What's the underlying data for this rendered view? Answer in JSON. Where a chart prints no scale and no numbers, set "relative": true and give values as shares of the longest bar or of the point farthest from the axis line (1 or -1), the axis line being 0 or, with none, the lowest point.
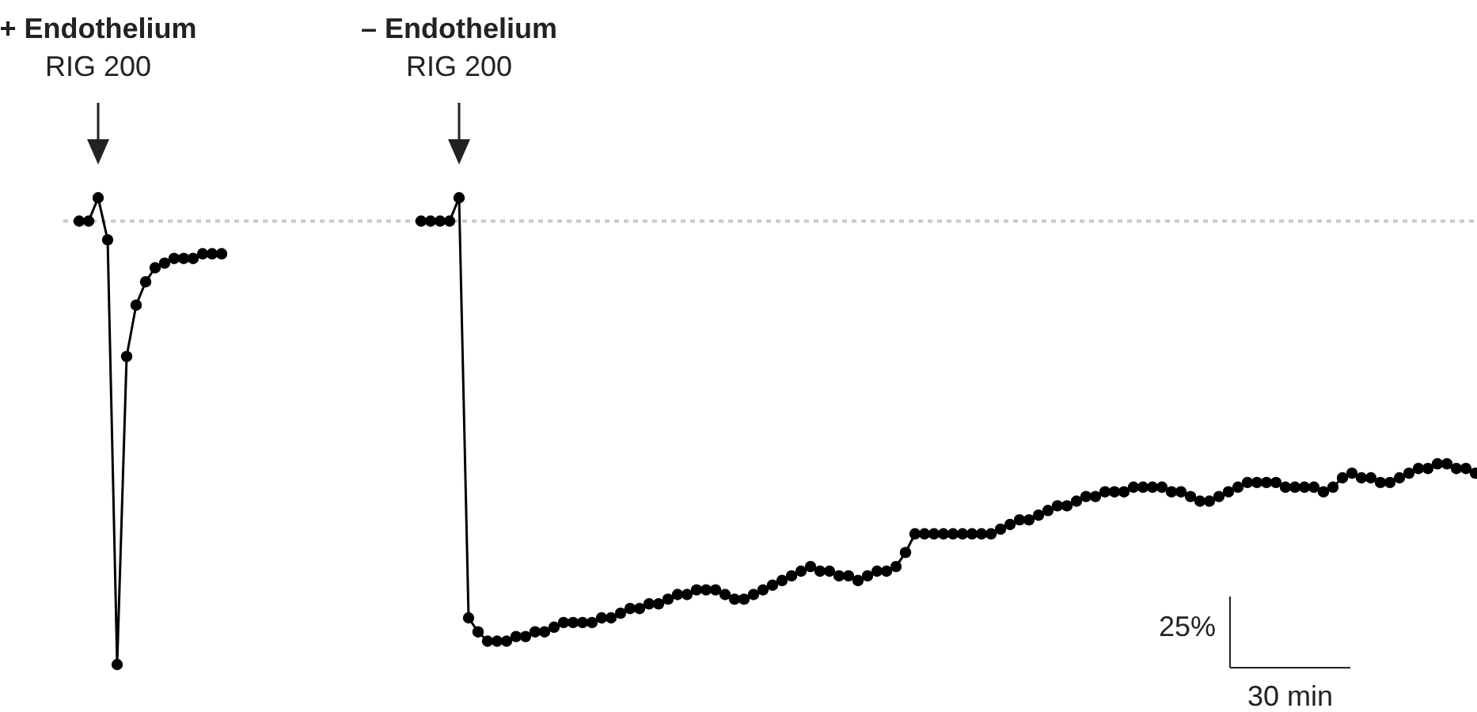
{
  "chart_data": {
    "type": "line",
    "relative": true,
    "marker": "circle",
    "categories": [
      null,
      null,
      null,
      null,
      null,
      null,
      null,
      null,
      null,
      null,
      null,
      null,
      null,
      null,
      null,
      null,
      null,
      null,
      null,
      null,
      null,
      null,
      null,
      null,
      null,
      null,
      null,
      null,
      null,
      null,
      null,
      null,
      null,
      null,
      null,
      null,
      null,
      null,
      null,
      null,
      null,
      null,
      null,
      null,
      null,
      null,
      null,
      null,
      null,
      null,
      null,
      null,
      null,
      null,
      null,
      null,
      null,
      null,
      null,
      null,
      null,
      null,
      null,
      null,
      null,
      null,
      null,
      null,
      null,
      null,
      null,
      null,
      null,
      null,
      null,
      null,
      null,
      null,
      null,
      null,
      null,
      null,
      null,
      null,
      null,
      null,
      null,
      null,
      null,
      null,
      null,
      null,
      null,
      null,
      null,
      null,
      null,
      null,
      null,
      null,
      null,
      null,
      null,
      null,
      null,
      null,
      null,
      null,
      null,
      null,
      null,
      null,
      null,
      null,
      null,
      null,
      null,
      null,
      null,
      null,
      null,
      null,
      null,
      null,
      null,
      null,
      null,
      null,
      null,
      null,
      null,
      null,
      null,
      null,
      null,
      null,
      null,
      null,
      null,
      null,
      null,
      null,
      null,
      null,
      null,
      null,
      null,
      null
    ],
    "series": [
      {
        "color": "#000000",
        "values": [
          0.95,
          0.95,
          1,
          0.91,
          0,
          0.66,
          0.77,
          0.82,
          0.85,
          0.86,
          0.87,
          0.87,
          0.87,
          0.88,
          0.88,
          0.88,
          null,
          null,
          null,
          null,
          null,
          null,
          null,
          null,
          null,
          null,
          null,
          null,
          null,
          null,
          null,
          null,
          null,
          null,
          null,
          null,
          null,
          null,
          null,
          null,
          null,
          null,
          null,
          null,
          null,
          null,
          null,
          null,
          null,
          null,
          null,
          null,
          null,
          null,
          null,
          null,
          null,
          null,
          null,
          null,
          null,
          null,
          null,
          null,
          null,
          null,
          null,
          null,
          null,
          null,
          null,
          null,
          null,
          null,
          null,
          null,
          null,
          null,
          null,
          null,
          null,
          null,
          null,
          null,
          null,
          null,
          null,
          null,
          null,
          null,
          null,
          null,
          null,
          null,
          null,
          null,
          null,
          null,
          null,
          null,
          null,
          null,
          null,
          null,
          null,
          null,
          null,
          null,
          null,
          null,
          null,
          null,
          null,
          null,
          null,
          null,
          null,
          null,
          null,
          null,
          null,
          null,
          null,
          null,
          null,
          null,
          null,
          null,
          null,
          null,
          null,
          null,
          null,
          null,
          null,
          null,
          null,
          null,
          null,
          null,
          null,
          null,
          null,
          null,
          null,
          null,
          null,
          null
        ]
      },
      {
        "color": "#000000",
        "values": [
          null,
          null,
          null,
          null,
          null,
          null,
          null,
          null,
          null,
          null,
          null,
          null,
          null,
          null,
          null,
          null,
          null,
          null,
          null,
          null,
          null,
          null,
          null,
          null,
          null,
          null,
          null,
          null,
          null,
          null,
          null,
          null,
          null,
          null,
          null,
          null,
          0.95,
          0.95,
          0.95,
          0.95,
          1,
          0.1,
          0.07,
          0.05,
          0.05,
          0.05,
          0.06,
          0.06,
          0.07,
          0.07,
          0.08,
          0.09,
          0.09,
          0.09,
          0.09,
          0.1,
          0.1,
          0.11,
          0.12,
          0.12,
          0.13,
          0.13,
          0.14,
          0.15,
          0.15,
          0.16,
          0.16,
          0.16,
          0.15,
          0.14,
          0.14,
          0.15,
          0.16,
          0.17,
          0.18,
          0.19,
          0.2,
          0.21,
          0.2,
          0.2,
          0.19,
          0.19,
          0.18,
          0.19,
          0.2,
          0.2,
          0.21,
          0.24,
          0.28,
          0.28,
          0.28,
          0.28,
          0.28,
          0.28,
          0.28,
          0.28,
          0.28,
          0.29,
          0.3,
          0.31,
          0.31,
          0.32,
          0.33,
          0.34,
          0.34,
          0.35,
          0.36,
          0.36,
          0.37,
          0.37,
          0.37,
          0.38,
          0.38,
          0.38,
          0.38,
          0.37,
          0.37,
          0.36,
          0.35,
          0.35,
          0.36,
          0.37,
          0.38,
          0.39,
          0.39,
          0.39,
          0.39,
          0.38,
          0.38,
          0.38,
          0.38,
          0.37,
          0.38,
          0.4,
          0.41,
          0.4,
          0.4,
          0.39,
          0.39,
          0.4,
          0.41,
          0.42,
          0.42,
          0.43,
          0.43,
          0.42,
          0.42,
          0.41
        ]
      }
    ],
    "ref_lines": [
      {
        "axis": "y",
        "value": 0.95,
        "color": "#c8c8c8",
        "line_style": "dotted"
      }
    ],
    "annotations": [
      "+ Endothelium",
      "RIG 200",
      "– Endothelium",
      "RIG 200",
      "25%",
      "30 min"
    ]
  }
}
